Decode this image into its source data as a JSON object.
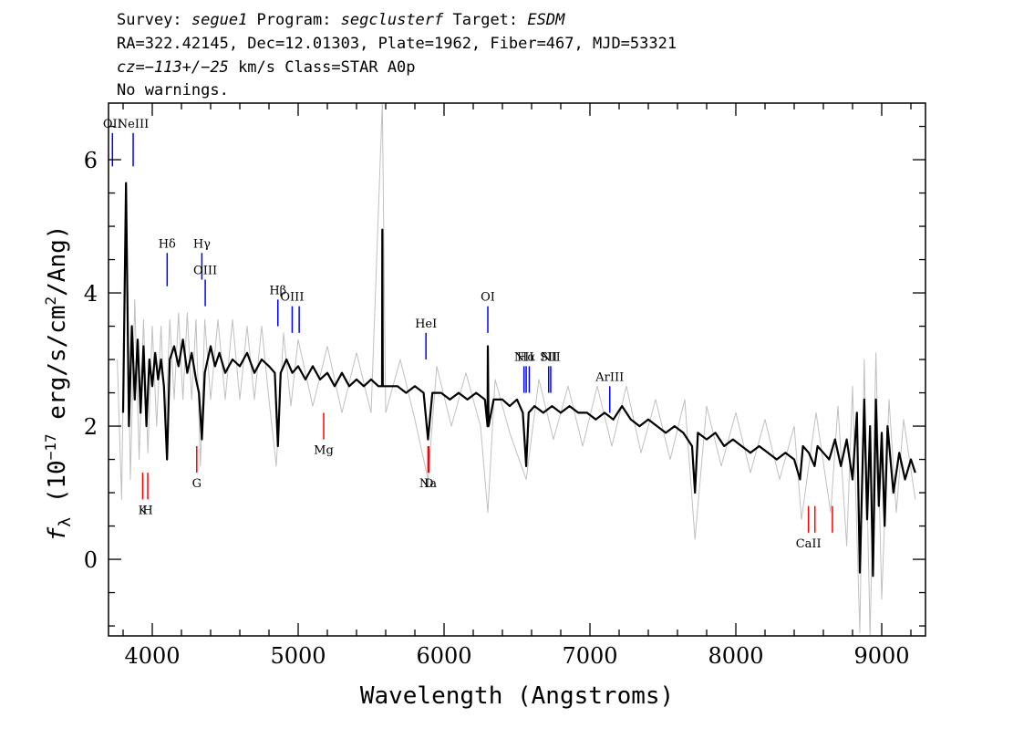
{
  "header": {
    "line1": {
      "survey_label": "Survey: ",
      "survey": "segue1",
      "program_label": " Program: ",
      "program": "segclusterf",
      "target_label": " Target: ",
      "target": "ESDM"
    },
    "line2": "RA=322.42145, Dec=12.01303, Plate=1962, Fiber=467, MJD=53321",
    "line3": {
      "cz": "cz=−113+/−25",
      "rest": " km/s Class=STAR A0p"
    },
    "line4": "No warnings."
  },
  "chart_data": {
    "type": "line",
    "xlabel": "Wavelength (Angstroms)",
    "ylabel": "f_λ (10^-17 erg/s/cm^2/Ang)",
    "ylabel_parts": {
      "f": "f",
      "lambda": "λ",
      "pre": " (10",
      "exp1": "−17",
      "mid": " erg/s/cm",
      "exp2": "2",
      "post": "/Ang)"
    },
    "xlim": [
      3700,
      9300
    ],
    "ylim": [
      -1.15,
      6.85
    ],
    "x_ticks": [
      4000,
      5000,
      6000,
      7000,
      8000,
      9000
    ],
    "x_tick_labels": [
      "4000",
      "5000",
      "6000",
      "7000",
      "8000",
      "9000"
    ],
    "y_ticks": [
      0,
      2,
      4,
      6
    ],
    "y_tick_labels": [
      "0",
      "2",
      "4",
      "6"
    ],
    "series": [
      {
        "role": "flux",
        "color": "#000000",
        "points": [
          [
            3800,
            2.2
          ],
          [
            3820,
            5.65
          ],
          [
            3840,
            2.0
          ],
          [
            3860,
            3.5
          ],
          [
            3880,
            2.4
          ],
          [
            3900,
            3.3
          ],
          [
            3920,
            2.2
          ],
          [
            3940,
            3.2
          ],
          [
            3960,
            2.0
          ],
          [
            3980,
            3.0
          ],
          [
            4000,
            2.6
          ],
          [
            4020,
            3.1
          ],
          [
            4040,
            2.7
          ],
          [
            4060,
            3.0
          ],
          [
            4080,
            2.6
          ],
          [
            4101,
            1.5
          ],
          [
            4120,
            3.0
          ],
          [
            4150,
            3.2
          ],
          [
            4180,
            2.9
          ],
          [
            4210,
            3.3
          ],
          [
            4240,
            2.8
          ],
          [
            4270,
            3.1
          ],
          [
            4300,
            2.7
          ],
          [
            4320,
            2.5
          ],
          [
            4340,
            1.8
          ],
          [
            4360,
            2.8
          ],
          [
            4400,
            3.2
          ],
          [
            4430,
            2.9
          ],
          [
            4460,
            3.1
          ],
          [
            4500,
            2.8
          ],
          [
            4550,
            3.0
          ],
          [
            4600,
            2.9
          ],
          [
            4650,
            3.1
          ],
          [
            4700,
            2.8
          ],
          [
            4750,
            3.0
          ],
          [
            4800,
            2.9
          ],
          [
            4840,
            2.8
          ],
          [
            4861,
            1.7
          ],
          [
            4880,
            2.8
          ],
          [
            4920,
            3.0
          ],
          [
            4960,
            2.8
          ],
          [
            5000,
            2.9
          ],
          [
            5050,
            2.7
          ],
          [
            5100,
            2.9
          ],
          [
            5150,
            2.7
          ],
          [
            5200,
            2.8
          ],
          [
            5250,
            2.6
          ],
          [
            5300,
            2.8
          ],
          [
            5350,
            2.6
          ],
          [
            5400,
            2.7
          ],
          [
            5450,
            2.6
          ],
          [
            5500,
            2.7
          ],
          [
            5550,
            2.6
          ],
          [
            5575,
            2.6
          ],
          [
            5577,
            4.95
          ],
          [
            5580,
            2.6
          ],
          [
            5620,
            2.6
          ],
          [
            5680,
            2.6
          ],
          [
            5740,
            2.5
          ],
          [
            5800,
            2.6
          ],
          [
            5860,
            2.5
          ],
          [
            5890,
            1.8
          ],
          [
            5920,
            2.5
          ],
          [
            5980,
            2.5
          ],
          [
            6040,
            2.4
          ],
          [
            6100,
            2.5
          ],
          [
            6160,
            2.4
          ],
          [
            6220,
            2.5
          ],
          [
            6280,
            2.4
          ],
          [
            6298,
            2.0
          ],
          [
            6300,
            3.2
          ],
          [
            6305,
            2.0
          ],
          [
            6340,
            2.4
          ],
          [
            6400,
            2.4
          ],
          [
            6450,
            2.3
          ],
          [
            6500,
            2.4
          ],
          [
            6540,
            2.2
          ],
          [
            6563,
            1.4
          ],
          [
            6580,
            2.2
          ],
          [
            6620,
            2.3
          ],
          [
            6680,
            2.2
          ],
          [
            6740,
            2.3
          ],
          [
            6800,
            2.2
          ],
          [
            6860,
            2.3
          ],
          [
            6920,
            2.2
          ],
          [
            6980,
            2.2
          ],
          [
            7040,
            2.1
          ],
          [
            7100,
            2.2
          ],
          [
            7160,
            2.1
          ],
          [
            7220,
            2.3
          ],
          [
            7280,
            2.1
          ],
          [
            7340,
            2.0
          ],
          [
            7400,
            2.1
          ],
          [
            7460,
            2.0
          ],
          [
            7520,
            1.9
          ],
          [
            7580,
            2.0
          ],
          [
            7640,
            1.9
          ],
          [
            7700,
            1.7
          ],
          [
            7720,
            1.0
          ],
          [
            7740,
            1.9
          ],
          [
            7800,
            1.8
          ],
          [
            7860,
            1.9
          ],
          [
            7920,
            1.7
          ],
          [
            7980,
            1.8
          ],
          [
            8040,
            1.7
          ],
          [
            8100,
            1.6
          ],
          [
            8160,
            1.7
          ],
          [
            8220,
            1.6
          ],
          [
            8280,
            1.5
          ],
          [
            8340,
            1.6
          ],
          [
            8400,
            1.5
          ],
          [
            8440,
            1.2
          ],
          [
            8460,
            1.7
          ],
          [
            8500,
            1.6
          ],
          [
            8540,
            1.4
          ],
          [
            8560,
            1.7
          ],
          [
            8600,
            1.6
          ],
          [
            8640,
            1.5
          ],
          [
            8680,
            1.8
          ],
          [
            8720,
            1.4
          ],
          [
            8760,
            1.8
          ],
          [
            8800,
            1.2
          ],
          [
            8830,
            2.2
          ],
          [
            8850,
            -0.2
          ],
          [
            8880,
            2.4
          ],
          [
            8900,
            0.6
          ],
          [
            8920,
            2.0
          ],
          [
            8940,
            -0.25
          ],
          [
            8960,
            2.4
          ],
          [
            8980,
            0.8
          ],
          [
            9000,
            1.9
          ],
          [
            9020,
            0.5
          ],
          [
            9040,
            2.0
          ],
          [
            9080,
            1.0
          ],
          [
            9120,
            1.6
          ],
          [
            9160,
            1.2
          ],
          [
            9200,
            1.5
          ],
          [
            9230,
            1.3
          ]
        ]
      },
      {
        "role": "error",
        "color": "#c0c0c0",
        "points": [
          [
            3760,
            3.0
          ],
          [
            3790,
            0.9
          ],
          [
            3820,
            5.5
          ],
          [
            3850,
            1.2
          ],
          [
            3880,
            3.9
          ],
          [
            3910,
            1.5
          ],
          [
            3940,
            3.6
          ],
          [
            3970,
            1.6
          ],
          [
            4000,
            3.5
          ],
          [
            4030,
            2.0
          ],
          [
            4060,
            3.5
          ],
          [
            4090,
            1.9
          ],
          [
            4120,
            3.6
          ],
          [
            4150,
            2.4
          ],
          [
            4180,
            3.7
          ],
          [
            4210,
            2.4
          ],
          [
            4240,
            3.7
          ],
          [
            4270,
            2.4
          ],
          [
            4300,
            3.6
          ],
          [
            4330,
            1.4
          ],
          [
            4360,
            3.6
          ],
          [
            4400,
            2.4
          ],
          [
            4450,
            3.6
          ],
          [
            4500,
            2.4
          ],
          [
            4550,
            3.6
          ],
          [
            4600,
            2.4
          ],
          [
            4650,
            3.5
          ],
          [
            4700,
            2.4
          ],
          [
            4750,
            3.5
          ],
          [
            4800,
            2.4
          ],
          [
            4850,
            1.4
          ],
          [
            4900,
            3.4
          ],
          [
            4950,
            2.3
          ],
          [
            5000,
            3.3
          ],
          [
            5100,
            2.3
          ],
          [
            5200,
            3.2
          ],
          [
            5300,
            2.2
          ],
          [
            5400,
            3.1
          ],
          [
            5500,
            2.2
          ],
          [
            5577,
            6.85
          ],
          [
            5600,
            2.2
          ],
          [
            5700,
            3.0
          ],
          [
            5800,
            2.1
          ],
          [
            5890,
            1.2
          ],
          [
            5950,
            2.9
          ],
          [
            6050,
            2.0
          ],
          [
            6150,
            2.8
          ],
          [
            6250,
            2.0
          ],
          [
            6300,
            0.7
          ],
          [
            6350,
            2.7
          ],
          [
            6450,
            1.9
          ],
          [
            6563,
            1.2
          ],
          [
            6650,
            2.7
          ],
          [
            6750,
            1.8
          ],
          [
            6850,
            2.6
          ],
          [
            6950,
            1.7
          ],
          [
            7050,
            2.6
          ],
          [
            7150,
            1.7
          ],
          [
            7250,
            2.6
          ],
          [
            7350,
            1.6
          ],
          [
            7450,
            2.4
          ],
          [
            7550,
            1.5
          ],
          [
            7650,
            2.4
          ],
          [
            7720,
            0.3
          ],
          [
            7800,
            2.3
          ],
          [
            7900,
            1.4
          ],
          [
            8000,
            2.2
          ],
          [
            8100,
            1.3
          ],
          [
            8200,
            2.1
          ],
          [
            8300,
            1.2
          ],
          [
            8400,
            2.0
          ],
          [
            8450,
            0.6
          ],
          [
            8550,
            2.2
          ],
          [
            8650,
            0.7
          ],
          [
            8700,
            2.3
          ],
          [
            8760,
            0.2
          ],
          [
            8800,
            2.6
          ],
          [
            8850,
            -1.1
          ],
          [
            8880,
            3.0
          ],
          [
            8920,
            -1.15
          ],
          [
            8960,
            3.1
          ],
          [
            9000,
            -0.6
          ],
          [
            9050,
            2.4
          ],
          [
            9100,
            0.7
          ],
          [
            9150,
            2.1
          ],
          [
            9230,
            0.9
          ]
        ]
      }
    ],
    "emission_lines": [
      {
        "label": "OII",
        "x": 3727,
        "y0": 5.9,
        "y1": 6.4
      },
      {
        "label": "NeIII",
        "x": 3869,
        "y0": 5.9,
        "y1": 6.4
      },
      {
        "label": "Hδ",
        "x": 4102,
        "y0": 4.1,
        "y1": 4.6
      },
      {
        "label": "Hγ",
        "x": 4340,
        "y0": 4.2,
        "y1": 4.6
      },
      {
        "label": "OIII",
        "x": 4363,
        "y0": 3.8,
        "y1": 4.2
      },
      {
        "label": "Hβ",
        "x": 4861,
        "y0": 3.5,
        "y1": 3.9
      },
      {
        "label": "OIII",
        "x": 4959,
        "y0": 3.4,
        "y1": 3.8
      },
      {
        "label": "",
        "x": 5007,
        "y0": 3.4,
        "y1": 3.8
      },
      {
        "label": "HeI",
        "x": 5876,
        "y0": 3.0,
        "y1": 3.4
      },
      {
        "label": "OI",
        "x": 6300,
        "y0": 3.4,
        "y1": 3.8
      },
      {
        "label": "NII",
        "x": 6548,
        "y0": 2.5,
        "y1": 2.9
      },
      {
        "label": "Hα",
        "x": 6563,
        "y0": 2.5,
        "y1": 2.9
      },
      {
        "label": "",
        "x": 6584,
        "y0": 2.5,
        "y1": 2.9
      },
      {
        "label": "SII",
        "x": 6717,
        "y0": 2.5,
        "y1": 2.9
      },
      {
        "label": "NII",
        "x": 6731,
        "y0": 2.5,
        "y1": 2.9
      },
      {
        "label": "ArIII",
        "x": 7136,
        "y0": 2.2,
        "y1": 2.6
      }
    ],
    "absorption_lines": [
      {
        "label": "K",
        "x": 3934,
        "y0": 0.9,
        "y1": 1.3
      },
      {
        "label": "H",
        "x": 3969,
        "y0": 0.9,
        "y1": 1.3
      },
      {
        "label": "G",
        "x": 4305,
        "y0": 1.3,
        "y1": 1.7
      },
      {
        "label": "Mg",
        "x": 5175,
        "y0": 1.8,
        "y1": 2.2
      },
      {
        "label": "Na",
        "x": 5890,
        "y0": 1.3,
        "y1": 1.7
      },
      {
        "label": "D",
        "x": 5896,
        "y0": 1.3,
        "y1": 1.7
      },
      {
        "label": "CaII",
        "x": 8498,
        "y0": 0.4,
        "y1": 0.8
      },
      {
        "label": "",
        "x": 8542,
        "y0": 0.4,
        "y1": 0.8
      },
      {
        "label": "",
        "x": 8662,
        "y0": 0.4,
        "y1": 0.8
      }
    ],
    "colors": {
      "flux": "#000000",
      "error": "#c0c0c0",
      "emission": "#0000ff",
      "absorption": "#ff0000"
    },
    "grid": false,
    "legend": "none"
  }
}
